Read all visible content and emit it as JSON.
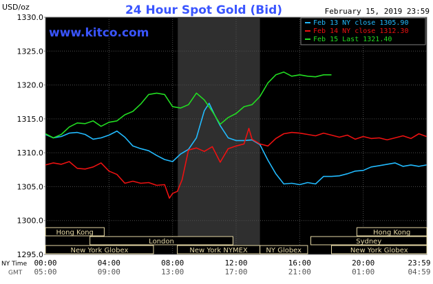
{
  "colors": {
    "background": "#000000",
    "plot_border": "#808080",
    "grid": "#505050",
    "session_highlight": "#2f2f2f",
    "title": "#3a55ff",
    "url": "#3a55ff",
    "axis_text": "#000000",
    "session_label_bg": "#000000",
    "session_label_text": "#e6d9a6",
    "session_label_border": "#e6d9a6",
    "legend_bg": "#000000"
  },
  "header": {
    "unit_label": "USD/oz",
    "title": "24 Hour Spot Gold (Bid)",
    "datetime": "February 15, 2019 23:59",
    "website": "www.kitco.com"
  },
  "axis_titles": {
    "ny_time": "NY Time",
    "gmt": "GMT"
  },
  "sessions": [
    {
      "label": "Hong Kong"
    },
    {
      "label": "London"
    },
    {
      "label": "New York Globex"
    },
    {
      "label": "New York NYMEX"
    },
    {
      "label": "NY Globex"
    },
    {
      "label": "New York Globex"
    },
    {
      "label": "Sydney"
    },
    {
      "label": "Hong Kong"
    }
  ],
  "chart_data": {
    "type": "line",
    "title": "24 Hour Spot Gold (Bid)",
    "ylabel": "USD/oz",
    "ylim": [
      1295.0,
      1330.0
    ],
    "yticks": [
      "1295.0",
      "1300.0",
      "1305.0",
      "1310.0",
      "1315.0",
      "1320.0",
      "1325.0",
      "1330.0"
    ],
    "xlim": [
      0,
      24
    ],
    "xticks_ny": [
      "00:00",
      "04:00",
      "08:00",
      "12:00",
      "16:00",
      "20:00",
      "23:59"
    ],
    "xticks_gmt": [
      "05:00",
      "09:00",
      "13:00",
      "17:00",
      "21:00",
      "01:00",
      "04:59"
    ],
    "highlight_hours": [
      8.33,
      13.5
    ],
    "grid": true,
    "legend_position": "top-right",
    "series": [
      {
        "name": "Feb 13 NY close 1305.90",
        "color": "#22bbff",
        "x": [
          0,
          0.5,
          1.0,
          1.5,
          2.0,
          2.5,
          3.0,
          3.5,
          4.0,
          4.5,
          5.0,
          5.5,
          6.0,
          6.5,
          7.0,
          7.5,
          8.0,
          8.5,
          9.0,
          9.5,
          9.7,
          10.0,
          10.3,
          10.6,
          11.0,
          11.5,
          12.0,
          12.5,
          13.0,
          13.5,
          14.0,
          14.5,
          15.0,
          15.5,
          16.0,
          16.5,
          17.0,
          17.5,
          18.0,
          18.5,
          19.0,
          19.5,
          20.0,
          20.5,
          21.0,
          21.5,
          22.0,
          22.5,
          23.0,
          23.5,
          23.98
        ],
        "values": [
          1312.7,
          1312.2,
          1312.4,
          1312.9,
          1313.0,
          1312.7,
          1312.0,
          1312.2,
          1312.6,
          1313.2,
          1312.3,
          1311.0,
          1310.6,
          1310.3,
          1309.6,
          1309.0,
          1308.7,
          1309.8,
          1310.5,
          1312.2,
          1313.8,
          1316.2,
          1317.3,
          1315.8,
          1314.0,
          1312.2,
          1311.8,
          1311.8,
          1311.9,
          1311.2,
          1308.9,
          1306.9,
          1305.4,
          1305.5,
          1305.3,
          1305.6,
          1305.4,
          1306.5,
          1306.5,
          1306.6,
          1306.9,
          1307.3,
          1307.4,
          1307.9,
          1308.1,
          1308.3,
          1308.5,
          1308.0,
          1308.2,
          1308.0,
          1308.2
        ]
      },
      {
        "name": "Feb 14 NY close 1312.30",
        "color": "#ee1111",
        "x": [
          0,
          0.5,
          1.0,
          1.5,
          2.0,
          2.5,
          3.0,
          3.5,
          4.0,
          4.5,
          5.0,
          5.5,
          6.0,
          6.5,
          7.0,
          7.5,
          7.8,
          8.0,
          8.3,
          8.6,
          9.0,
          9.5,
          10.0,
          10.5,
          11.0,
          11.5,
          12.0,
          12.5,
          12.8,
          13.0,
          13.5,
          14.0,
          14.5,
          15.0,
          15.5,
          16.0,
          16.5,
          17.0,
          17.5,
          18.0,
          18.5,
          19.0,
          19.5,
          20.0,
          20.5,
          21.0,
          21.5,
          22.0,
          22.5,
          23.0,
          23.5,
          23.98
        ],
        "values": [
          1308.2,
          1308.5,
          1308.3,
          1308.7,
          1307.7,
          1307.6,
          1307.9,
          1308.5,
          1307.3,
          1306.8,
          1305.5,
          1305.8,
          1305.5,
          1305.6,
          1305.2,
          1305.3,
          1303.3,
          1304.0,
          1304.3,
          1306.0,
          1310.4,
          1310.7,
          1310.2,
          1310.9,
          1308.6,
          1310.6,
          1311.0,
          1311.3,
          1313.6,
          1312.0,
          1311.3,
          1311.0,
          1312.1,
          1312.8,
          1313.0,
          1312.9,
          1312.7,
          1312.5,
          1312.9,
          1312.6,
          1312.3,
          1312.6,
          1312.0,
          1312.4,
          1312.1,
          1312.2,
          1311.9,
          1312.2,
          1312.5,
          1312.1,
          1312.8,
          1312.4
        ]
      },
      {
        "name": "Feb 15 Last 1321.40",
        "color": "#22dd22",
        "x": [
          0,
          0.5,
          1.0,
          1.5,
          2.0,
          2.5,
          3.0,
          3.5,
          4.0,
          4.5,
          5.0,
          5.5,
          6.0,
          6.5,
          7.0,
          7.5,
          8.0,
          8.5,
          9.0,
          9.5,
          10.0,
          10.5,
          11.0,
          11.5,
          12.0,
          12.5,
          13.0,
          13.5,
          14.0,
          14.5,
          15.0,
          15.5,
          16.0,
          16.5,
          17.0,
          17.5,
          18.0
        ],
        "values": [
          1312.8,
          1312.2,
          1312.7,
          1313.8,
          1314.4,
          1314.3,
          1314.7,
          1313.9,
          1314.5,
          1314.7,
          1315.6,
          1316.1,
          1317.2,
          1318.6,
          1318.8,
          1318.6,
          1316.8,
          1316.6,
          1317.1,
          1318.8,
          1317.8,
          1316.1,
          1314.2,
          1315.2,
          1315.8,
          1316.8,
          1317.1,
          1318.3,
          1320.3,
          1321.5,
          1321.9,
          1321.3,
          1321.5,
          1321.3,
          1321.2,
          1321.5,
          1321.5
        ]
      }
    ]
  }
}
